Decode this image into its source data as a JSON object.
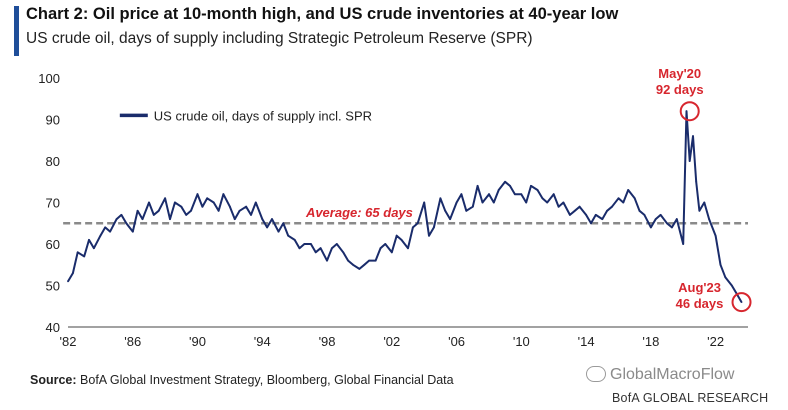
{
  "header": {
    "title": "Chart 2: Oil price at 10-month high, and US crude inventories at 40-year low",
    "subtitle": "US crude oil, days of supply including Strategic Petroleum Reserve (SPR)"
  },
  "footer": {
    "source_label": "Source:",
    "source_text": "BofA Global Investment Strategy, Bloomberg, Global Financial Data",
    "watermark": "GlobalMacroFlow",
    "credit": "BofA GLOBAL RESEARCH"
  },
  "colors": {
    "accent": "#1f4e99",
    "series": "#1a2c6b",
    "annotation": "#d7262e",
    "average_line": "#8a8a8a"
  },
  "chart_data": {
    "type": "line",
    "title": "Chart 2: Oil price at 10-month high, and US crude inventories at 40-year low",
    "subtitle": "US crude oil, days of supply including Strategic Petroleum Reserve (SPR)",
    "xlabel": "",
    "ylabel": "",
    "xlim": [
      1982,
      2024
    ],
    "ylim": [
      40,
      100
    ],
    "yticks": [
      40,
      50,
      60,
      70,
      80,
      90,
      100
    ],
    "xtick_labels": [
      "'82",
      "'86",
      "'90",
      "'94",
      "'98",
      "'02",
      "'06",
      "'10",
      "'14",
      "'18",
      "'22"
    ],
    "xtick_years": [
      1982,
      1986,
      1990,
      1994,
      1998,
      2002,
      2006,
      2010,
      2014,
      2018,
      2022
    ],
    "grid": false,
    "legend": {
      "position": "top-center",
      "entries": [
        "US crude oil, days of supply incl. SPR"
      ]
    },
    "series": [
      {
        "name": "US crude oil, days of supply incl. SPR",
        "x": [
          1982.0,
          1982.3,
          1982.6,
          1983.0,
          1983.3,
          1983.6,
          1984.0,
          1984.3,
          1984.6,
          1985.0,
          1985.3,
          1985.6,
          1986.0,
          1986.3,
          1986.6,
          1987.0,
          1987.3,
          1987.6,
          1988.0,
          1988.3,
          1988.6,
          1989.0,
          1989.3,
          1989.6,
          1990.0,
          1990.3,
          1990.6,
          1991.0,
          1991.3,
          1991.6,
          1992.0,
          1992.3,
          1992.6,
          1993.0,
          1993.3,
          1993.6,
          1994.0,
          1994.3,
          1994.6,
          1995.0,
          1995.3,
          1995.6,
          1996.0,
          1996.3,
          1996.6,
          1997.0,
          1997.3,
          1997.6,
          1998.0,
          1998.3,
          1998.6,
          1999.0,
          1999.3,
          1999.6,
          2000.0,
          2000.3,
          2000.6,
          2001.0,
          2001.3,
          2001.6,
          2002.0,
          2002.3,
          2002.6,
          2003.0,
          2003.3,
          2003.6,
          2004.0,
          2004.3,
          2004.6,
          2005.0,
          2005.3,
          2005.6,
          2006.0,
          2006.3,
          2006.6,
          2007.0,
          2007.3,
          2007.6,
          2008.0,
          2008.3,
          2008.6,
          2009.0,
          2009.3,
          2009.6,
          2010.0,
          2010.3,
          2010.6,
          2011.0,
          2011.3,
          2011.6,
          2012.0,
          2012.3,
          2012.6,
          2013.0,
          2013.3,
          2013.6,
          2014.0,
          2014.3,
          2014.6,
          2015.0,
          2015.3,
          2015.6,
          2016.0,
          2016.3,
          2016.6,
          2017.0,
          2017.3,
          2017.6,
          2018.0,
          2018.3,
          2018.6,
          2019.0,
          2019.3,
          2019.6,
          2020.0,
          2020.2,
          2020.4,
          2020.6,
          2020.8,
          2021.0,
          2021.3,
          2021.6,
          2022.0,
          2022.3,
          2022.6,
          2023.0,
          2023.3,
          2023.6
        ],
        "values": [
          51,
          53,
          58,
          57,
          61,
          59,
          62,
          64,
          63,
          66,
          67,
          65,
          63,
          68,
          66,
          70,
          67,
          68,
          71,
          66,
          70,
          69,
          67,
          68,
          72,
          69,
          71,
          70,
          68,
          72,
          69,
          66,
          68,
          69,
          67,
          70,
          66,
          64,
          66,
          63,
          65,
          62,
          61,
          59,
          60,
          60,
          58,
          59,
          56,
          59,
          60,
          58,
          56,
          55,
          54,
          55,
          56,
          56,
          59,
          60,
          58,
          62,
          61,
          59,
          64,
          65,
          70,
          62,
          64,
          71,
          68,
          66,
          70,
          72,
          68,
          69,
          74,
          70,
          72,
          70,
          73,
          75,
          74,
          72,
          72,
          70,
          74,
          73,
          71,
          70,
          72,
          69,
          70,
          67,
          68,
          69,
          67,
          65,
          67,
          66,
          68,
          69,
          71,
          70,
          73,
          71,
          68,
          67,
          64,
          66,
          67,
          65,
          64,
          66,
          60,
          92,
          80,
          86,
          75,
          68,
          70,
          66,
          62,
          55,
          52,
          50,
          48,
          46
        ]
      },
      {
        "name": "Average: 65 days",
        "x": [
          1981.7,
          2024.0
        ],
        "values": [
          65,
          65
        ]
      }
    ],
    "annotations": [
      {
        "text": "Average: 65 days",
        "x": 2000,
        "y": 66.5
      },
      {
        "text": "May'20",
        "x": 2020.4,
        "y": 92,
        "label_line2": "92 days"
      },
      {
        "text": "Aug'23",
        "x": 2023.6,
        "y": 46,
        "label_line2": "46 days"
      }
    ]
  }
}
